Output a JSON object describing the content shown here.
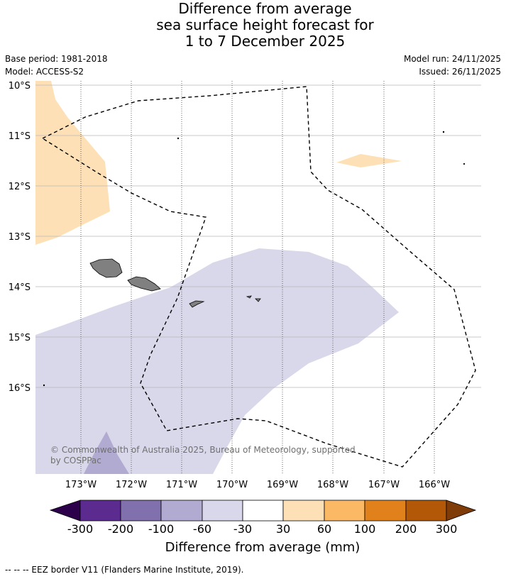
{
  "title": {
    "line1": "Difference from average",
    "line2": "sea surface height forecast for",
    "line3": "1 to 7 December 2025"
  },
  "meta": {
    "base_period": "Base period: 1981-2018",
    "model": "Model: ACCESS-S2",
    "model_run": "Model run: 24/11/2025",
    "issued": "Issued: 26/11/2025"
  },
  "map": {
    "lat_labels": [
      "10°S",
      "11°S",
      "12°S",
      "13°S",
      "14°S",
      "15°S",
      "16°S"
    ],
    "lon_labels": [
      "173°W",
      "172°W",
      "171°W",
      "170°W",
      "169°W",
      "168°W",
      "167°W",
      "166°W"
    ],
    "copyright": "© Commonwealth of Australia 2025, Bureau of Meteorology, supported",
    "copyright_line2": "by COSPPac",
    "colors": {
      "land": "#808080",
      "ocean": "#ffffff",
      "anomaly_neg_60_30": "#d8d8ea",
      "anomaly_neg_100_60": "#b1abd2",
      "anomaly_pos_30_60": "#fde0b6"
    }
  },
  "colorbar": {
    "ticks": [
      "-300",
      "-200",
      "-100",
      "-60",
      "-30",
      "30",
      "60",
      "100",
      "200",
      "300"
    ],
    "colors": [
      "#2d004b",
      "#5b2b8f",
      "#8070ad",
      "#b1abd2",
      "#d8d8ea",
      "#ffffff",
      "#fde0b6",
      "#fbb865",
      "#e1811b",
      "#b35807",
      "#7f3b08"
    ],
    "label": "Difference from average (mm)"
  },
  "legend": {
    "eez_note": "--  --  -- EEZ border V11 (Flanders Marine Institute, 2019)."
  }
}
